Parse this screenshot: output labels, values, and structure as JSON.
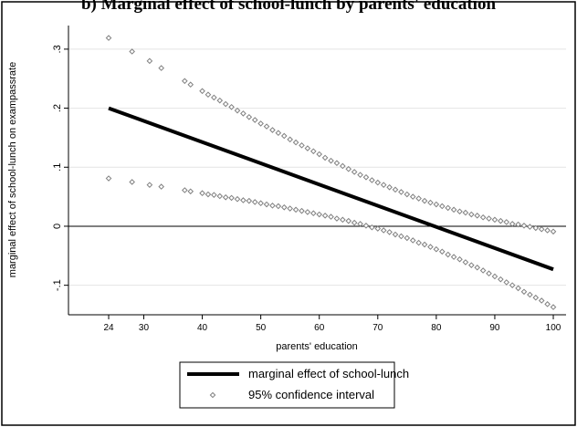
{
  "chart_data": {
    "type": "line",
    "title": "b) Marginal effect of school-lunch by parents' education",
    "x_label": "parents' education",
    "y_label": "marginal effect of school-lunch on exampassrate",
    "xlim": [
      17.13,
      102.18
    ],
    "ylim": [
      -0.15,
      0.34
    ],
    "xticks": [
      24,
      30,
      40,
      50,
      60,
      70,
      80,
      90,
      100
    ],
    "yticks": [
      {
        "value": -0.1,
        "label": "-.1"
      },
      0,
      {
        "value": 0.1,
        "label": ".1"
      },
      {
        "value": 0.2,
        "label": ".2"
      },
      {
        "value": 0.3,
        "label": ".3"
      }
    ],
    "grid": true,
    "reference_line": 0,
    "legend": "bottom",
    "series": [
      {
        "name": "marginal effect of school-lunch",
        "color": "#000000",
        "style": "line",
        "x": [
          24,
          100
        ],
        "values": [
          0.2,
          -0.073
        ]
      },
      {
        "name": "95% confidence interval",
        "color": "#808080",
        "style": "marker",
        "x": [
          24,
          28,
          31,
          33,
          37,
          38,
          40,
          41,
          42,
          43,
          44,
          45,
          46,
          47,
          48,
          49,
          50,
          51,
          52,
          53,
          54,
          55,
          56,
          57,
          58,
          59,
          60,
          61,
          62,
          63,
          64,
          65,
          66,
          67,
          68,
          69,
          70,
          71,
          72,
          73,
          74,
          75,
          76,
          77,
          78,
          79,
          80,
          81,
          82,
          83,
          84,
          85,
          86,
          87,
          88,
          89,
          90,
          91,
          92,
          93,
          94,
          95,
          96,
          97,
          98,
          99,
          100
        ],
        "values": [
          0.319,
          0.296,
          0.28,
          0.268,
          0.246,
          0.24,
          0.229,
          0.223,
          0.218,
          0.213,
          0.207,
          0.202,
          0.196,
          0.191,
          0.185,
          0.18,
          0.174,
          0.169,
          0.163,
          0.158,
          0.153,
          0.147,
          0.142,
          0.137,
          0.132,
          0.127,
          0.122,
          0.116,
          0.111,
          0.107,
          0.102,
          0.097,
          0.092,
          0.087,
          0.083,
          0.078,
          0.074,
          0.07,
          0.066,
          0.062,
          0.058,
          0.054,
          0.05,
          0.047,
          0.043,
          0.04,
          0.037,
          0.034,
          0.031,
          0.028,
          0.025,
          0.023,
          0.02,
          0.018,
          0.015,
          0.013,
          0.011,
          0.009,
          0.007,
          0.004,
          0.003,
          0.001,
          -0.001,
          -0.003,
          -0.005,
          -0.007,
          -0.009
        ],
        "lower_values": [
          0.081,
          0.075,
          0.07,
          0.067,
          0.061,
          0.059,
          0.056,
          0.054,
          0.053,
          0.051,
          0.049,
          0.048,
          0.046,
          0.044,
          0.043,
          0.041,
          0.039,
          0.037,
          0.035,
          0.034,
          0.032,
          0.03,
          0.028,
          0.026,
          0.024,
          0.022,
          0.02,
          0.018,
          0.016,
          0.013,
          0.011,
          0.009,
          0.006,
          0.004,
          0.001,
          -0.002,
          -0.004,
          -0.007,
          -0.01,
          -0.014,
          -0.017,
          -0.02,
          -0.024,
          -0.028,
          -0.031,
          -0.035,
          -0.039,
          -0.043,
          -0.048,
          -0.052,
          -0.056,
          -0.061,
          -0.066,
          -0.07,
          -0.075,
          -0.08,
          -0.085,
          -0.09,
          -0.095,
          -0.1,
          -0.105,
          -0.111,
          -0.116,
          -0.121,
          -0.126,
          -0.132,
          -0.137
        ]
      }
    ]
  }
}
